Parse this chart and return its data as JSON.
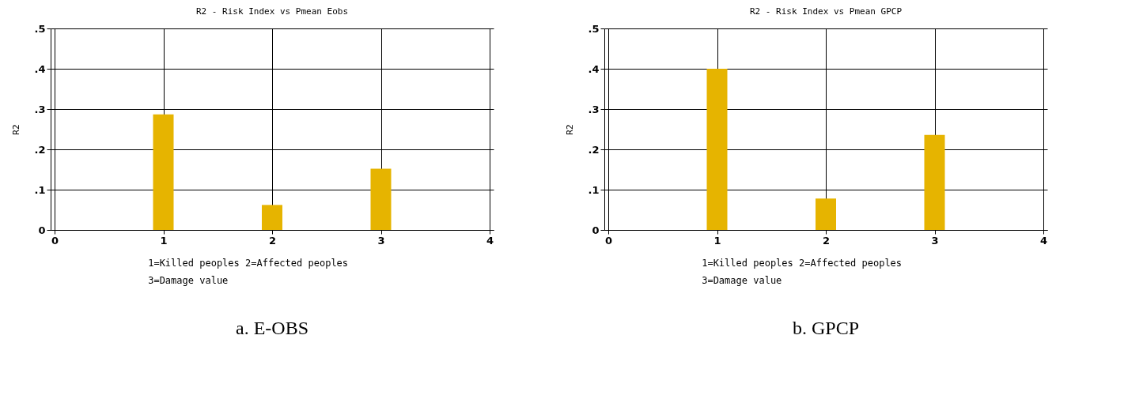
{
  "chart_data": [
    {
      "type": "bar",
      "title": "R2 - Risk Index vs Pmean Eobs",
      "ylabel": "R2",
      "x": [
        1,
        2,
        3
      ],
      "series": [
        {
          "color": "#e6b400",
          "values": [
            0.287,
            0.062,
            0.152
          ]
        }
      ],
      "xlim": [
        0,
        4
      ],
      "xticks": [
        0,
        1,
        2,
        3,
        4
      ],
      "ylim": [
        0,
        0.5
      ],
      "yticks": [
        {
          "value": 0,
          "label": "0"
        },
        {
          "value": 0.1,
          "label": ".1"
        },
        {
          "value": 0.2,
          "label": ".2"
        },
        {
          "value": 0.3,
          "label": ".3"
        },
        {
          "value": 0.4,
          "label": ".4"
        },
        {
          "value": 0.5,
          "label": ".5"
        }
      ],
      "grid": true,
      "annotations": [
        "1=Killed peoples 2=Affected peoples",
        "3=Damage value",
        "a. E-OBS"
      ]
    },
    {
      "type": "bar",
      "title": "R2 - Risk Index vs Pmean GPCP",
      "ylabel": "R2",
      "x": [
        1,
        2,
        3
      ],
      "series": [
        {
          "color": "#e6b400",
          "values": [
            0.4,
            0.078,
            0.236
          ]
        }
      ],
      "xlim": [
        0,
        4
      ],
      "xticks": [
        0,
        1,
        2,
        3,
        4
      ],
      "ylim": [
        0,
        0.5
      ],
      "yticks": [
        {
          "value": 0,
          "label": "0"
        },
        {
          "value": 0.1,
          "label": ".1"
        },
        {
          "value": 0.2,
          "label": ".2"
        },
        {
          "value": 0.3,
          "label": ".3"
        },
        {
          "value": 0.4,
          "label": ".4"
        },
        {
          "value": 0.5,
          "label": ".5"
        }
      ],
      "grid": true,
      "annotations": [
        "1=Killed peoples 2=Affected peoples",
        "3=Damage value",
        "b. GPCP"
      ]
    }
  ]
}
